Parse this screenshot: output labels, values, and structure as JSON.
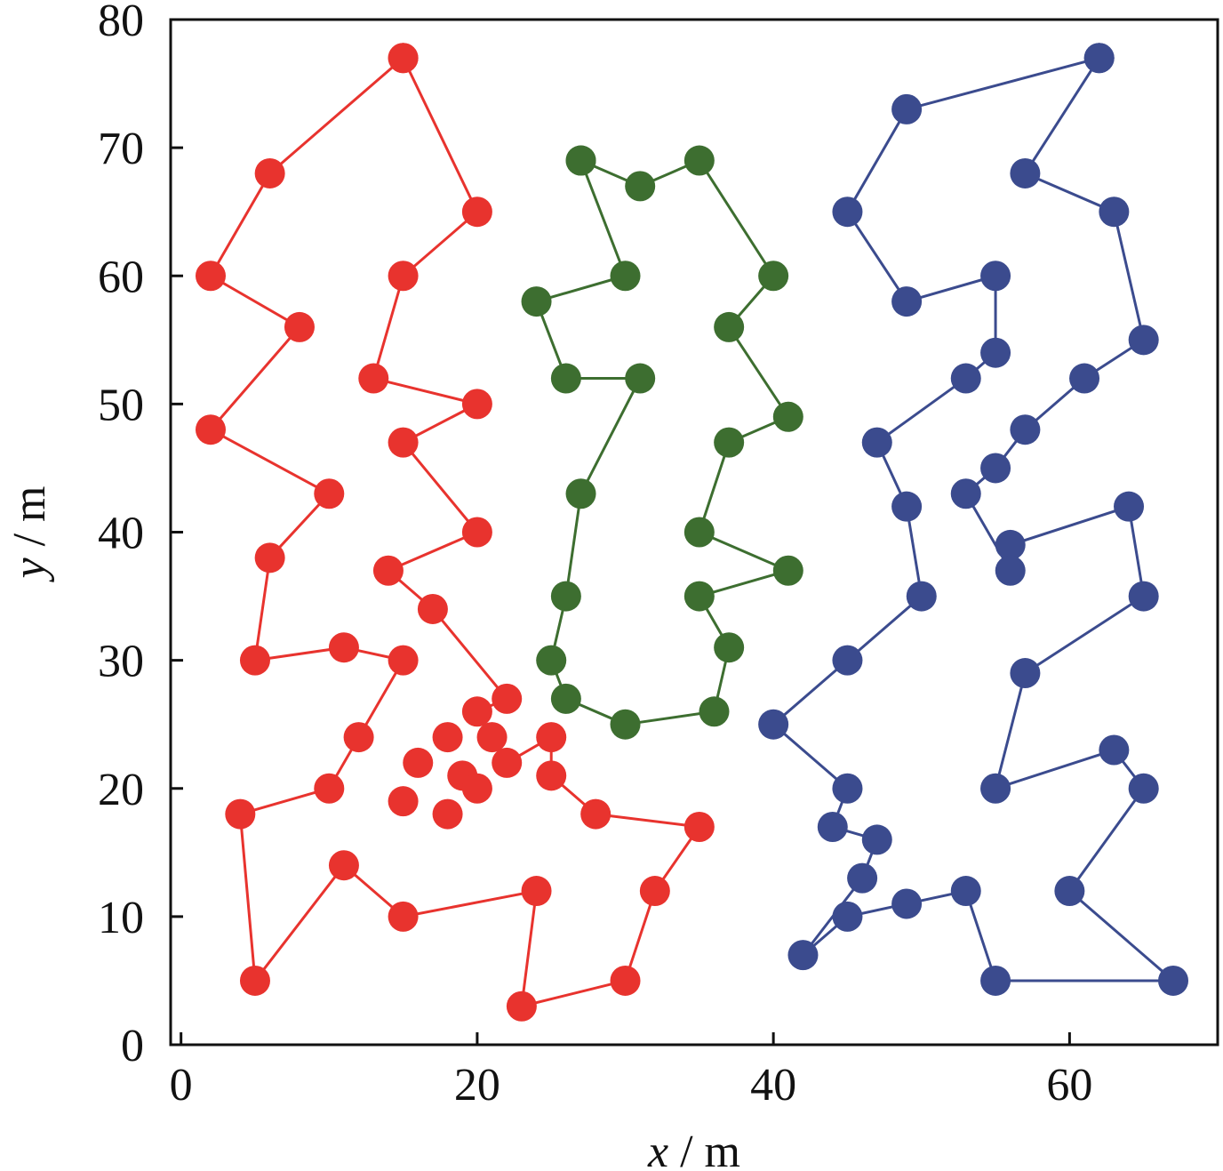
{
  "chart_data": {
    "type": "line",
    "xlabel": {
      "var": "x",
      "unit": " / m"
    },
    "ylabel": {
      "var": "y",
      "unit": " / m"
    },
    "xlim": [
      -0.7,
      70
    ],
    "ylim": [
      0,
      80
    ],
    "xticks": [
      0,
      20,
      40,
      60
    ],
    "yticks": [
      0,
      10,
      20,
      30,
      40,
      50,
      60,
      70,
      80
    ],
    "xtick_labels": [
      "0",
      "20",
      "40",
      "60"
    ],
    "ytick_labels": [
      "0",
      "10",
      "20",
      "30",
      "40",
      "50",
      "60",
      "70",
      "80"
    ],
    "grid": false,
    "legend": "none",
    "series": [
      {
        "color": "#e8332e",
        "points": [
          [
            15,
            77
          ],
          [
            20,
            65
          ],
          [
            15,
            60
          ],
          [
            13,
            52
          ],
          [
            20,
            50
          ],
          [
            15,
            47
          ],
          [
            20,
            40
          ],
          [
            14,
            37
          ],
          [
            17,
            34
          ],
          [
            22,
            27
          ],
          [
            20,
            26
          ],
          [
            21,
            24
          ],
          [
            22,
            22
          ],
          [
            25,
            24
          ],
          [
            25,
            21
          ],
          [
            28,
            18
          ],
          [
            35,
            17
          ],
          [
            32,
            12
          ],
          [
            30,
            5
          ],
          [
            23,
            3
          ],
          [
            24,
            12
          ],
          [
            15,
            10
          ],
          [
            11,
            14
          ],
          [
            5,
            5
          ],
          [
            4,
            18
          ],
          [
            10,
            20
          ],
          [
            12,
            24
          ],
          [
            15,
            30
          ],
          [
            11,
            31
          ],
          [
            5,
            30
          ],
          [
            6,
            38
          ],
          [
            10,
            43
          ],
          [
            2,
            48
          ],
          [
            8,
            56
          ],
          [
            2,
            60
          ],
          [
            6,
            68
          ],
          [
            15,
            77
          ]
        ],
        "extra_points": [
          [
            18,
            24
          ],
          [
            16,
            22
          ],
          [
            19,
            21
          ],
          [
            20,
            20
          ],
          [
            15,
            19
          ],
          [
            18,
            18
          ]
        ]
      },
      {
        "color": "#3d6e30",
        "points": [
          [
            27,
            69
          ],
          [
            31,
            67
          ],
          [
            35,
            69
          ],
          [
            40,
            60
          ],
          [
            37,
            56
          ],
          [
            41,
            49
          ],
          [
            37,
            47
          ],
          [
            35,
            40
          ],
          [
            41,
            37
          ],
          [
            35,
            35
          ],
          [
            37,
            31
          ],
          [
            36,
            26
          ],
          [
            30,
            25
          ],
          [
            26,
            27
          ],
          [
            25,
            30
          ],
          [
            26,
            35
          ],
          [
            27,
            43
          ],
          [
            31,
            52
          ],
          [
            26,
            52
          ],
          [
            24,
            58
          ],
          [
            30,
            60
          ],
          [
            27,
            69
          ]
        ]
      },
      {
        "color": "#3b4b8e",
        "points": [
          [
            62,
            77
          ],
          [
            49,
            73
          ],
          [
            45,
            65
          ],
          [
            49,
            58
          ],
          [
            55,
            60
          ],
          [
            55,
            54
          ],
          [
            53,
            52
          ],
          [
            47,
            47
          ],
          [
            49,
            42
          ],
          [
            50,
            35
          ],
          [
            45,
            30
          ],
          [
            40,
            25
          ],
          [
            45,
            20
          ],
          [
            44,
            17
          ],
          [
            47,
            16
          ],
          [
            46,
            13
          ],
          [
            42,
            7
          ],
          [
            45,
            10
          ],
          [
            49,
            11
          ],
          [
            53,
            12
          ],
          [
            55,
            5
          ],
          [
            67,
            5
          ],
          [
            60,
            12
          ],
          [
            65,
            20
          ],
          [
            63,
            23
          ],
          [
            55,
            20
          ],
          [
            57,
            29
          ],
          [
            65,
            35
          ],
          [
            64,
            42
          ],
          [
            56,
            39
          ],
          [
            56,
            37
          ],
          [
            53,
            43
          ],
          [
            55,
            45
          ],
          [
            57,
            48
          ],
          [
            61,
            52
          ],
          [
            65,
            55
          ],
          [
            63,
            65
          ],
          [
            57,
            68
          ],
          [
            62,
            77
          ]
        ]
      }
    ]
  }
}
